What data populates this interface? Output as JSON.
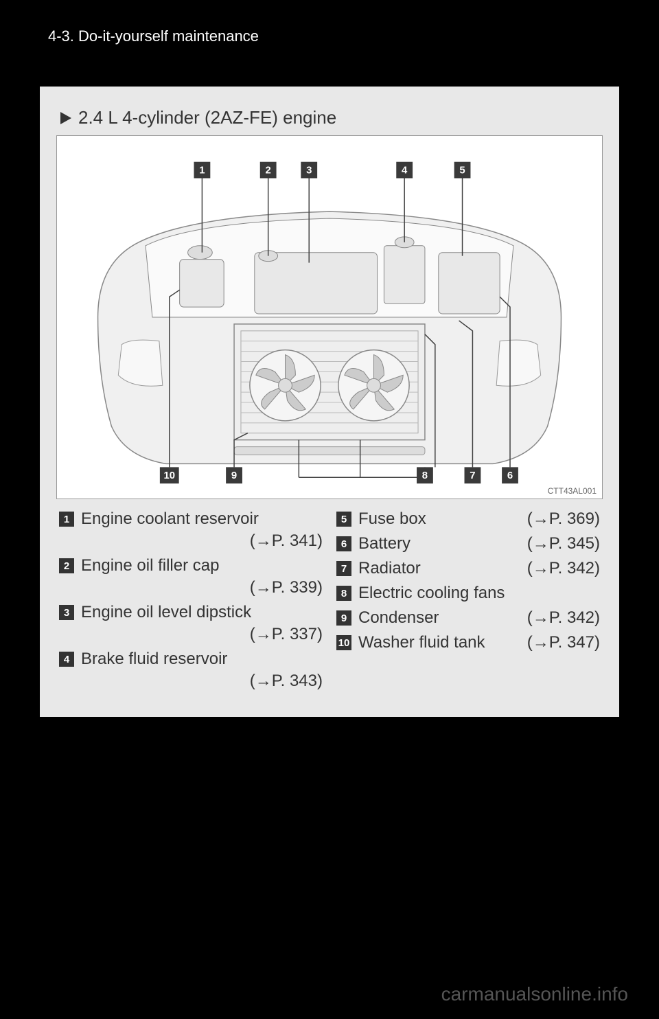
{
  "header": {
    "section": "4-3. Do-it-yourself maintenance"
  },
  "subtitle": "2.4 L 4-cylinder (2AZ-FE) engine",
  "diagram": {
    "id": "CTT43AL001",
    "callout_labels_top": [
      "1",
      "2",
      "3",
      "4",
      "5"
    ],
    "callout_labels_bottom": [
      "10",
      "9",
      "8",
      "7",
      "6"
    ],
    "colors": {
      "box_fill": "#3a3a3a",
      "box_text": "#ffffff",
      "line": "#404040",
      "car_stroke": "#808080",
      "car_fill": "#f5f5f5"
    }
  },
  "legend_left": [
    {
      "num": "1",
      "label": "Engine coolant reservoir",
      "ref": "(→P. 341)",
      "ref_newline": true
    },
    {
      "num": "2",
      "label": "Engine oil filler cap",
      "ref": "(→P. 339)",
      "ref_newline": true
    },
    {
      "num": "3",
      "label": "Engine oil level dipstick",
      "ref": "(→P. 337)",
      "ref_newline": true
    },
    {
      "num": "4",
      "label": "Brake fluid reservoir",
      "ref": "(→P. 343)",
      "ref_newline": true
    }
  ],
  "legend_right": [
    {
      "num": "5",
      "label": "Fuse box",
      "ref": "(→P. 369)",
      "ref_newline": false
    },
    {
      "num": "6",
      "label": "Battery",
      "ref": "(→P. 345)",
      "ref_newline": false
    },
    {
      "num": "7",
      "label": "Radiator",
      "ref": "(→P. 342)",
      "ref_newline": false
    },
    {
      "num": "8",
      "label": "Electric cooling fans",
      "ref": "",
      "ref_newline": false
    },
    {
      "num": "9",
      "label": "Condenser",
      "ref": "(→P. 342)",
      "ref_newline": false
    },
    {
      "num": "10",
      "label": "Washer fluid tank",
      "ref": "(→P. 347)",
      "ref_newline": false
    }
  ],
  "watermark": "carmanualsonline.info"
}
